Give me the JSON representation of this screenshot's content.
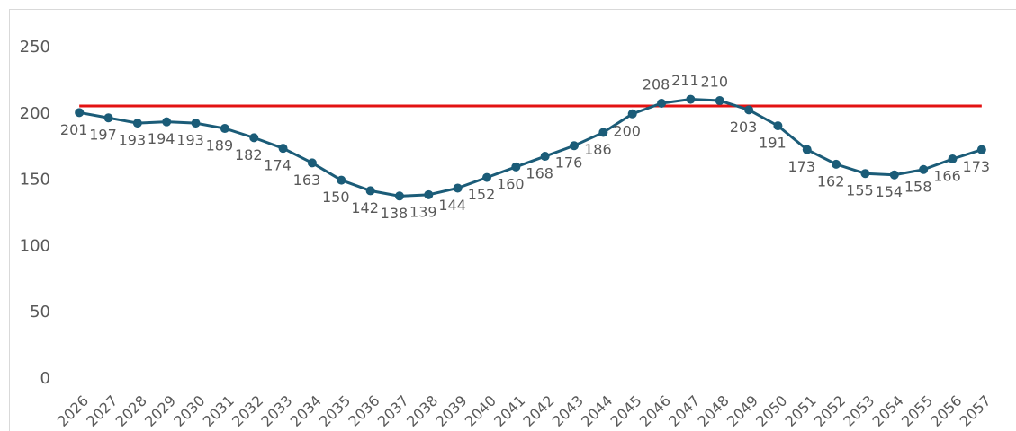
{
  "chart_data": {
    "type": "line",
    "categories": [
      "2026",
      "2027",
      "2028",
      "2029",
      "2030",
      "2031",
      "2032",
      "2033",
      "2034",
      "2035",
      "2036",
      "2037",
      "2038",
      "2039",
      "2040",
      "2041",
      "2042",
      "2043",
      "2044",
      "2045",
      "2046",
      "2047",
      "2048",
      "2049",
      "2050",
      "2051",
      "2052",
      "2053",
      "2054",
      "2055",
      "2056",
      "2057"
    ],
    "series": [
      {
        "color": "#1b5c78",
        "values": [
          201,
          197,
          193,
          194,
          193,
          189,
          182,
          174,
          163,
          150,
          142,
          138,
          139,
          144,
          152,
          160,
          168,
          176,
          186,
          200,
          208,
          211,
          210,
          203,
          191,
          173,
          162,
          155,
          154,
          158,
          166,
          173
        ]
      }
    ],
    "reference_line": {
      "value": 206,
      "color": "#e31212"
    },
    "ylim": [
      0,
      250
    ],
    "yticks": [
      0,
      50,
      100,
      150,
      200,
      250
    ],
    "grid": false
  }
}
